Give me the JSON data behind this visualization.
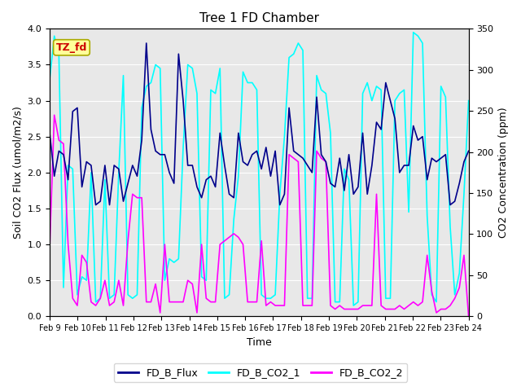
{
  "title": "Tree 1 FD Chamber",
  "xlabel": "Time",
  "ylabel_left": "Soil CO2 Flux (umol/m2/s)",
  "ylabel_right": "CO2 Concentration (ppm)",
  "ylim_left": [
    0.0,
    4.0
  ],
  "ylim_right": [
    0,
    350
  ],
  "annotation_text": "TZ_fd",
  "annotation_color": "#cc0000",
  "annotation_bg": "#ffff99",
  "annotation_edge": "#aaaa00",
  "line_colors": {
    "FD_B_Flux": "#00008B",
    "FD_B_CO2_1": "#00FFFF",
    "FD_B_CO2_2": "#FF00FF"
  },
  "line_widths": {
    "FD_B_Flux": 1.2,
    "FD_B_CO2_1": 1.2,
    "FD_B_CO2_2": 1.2
  },
  "background_color": "#e8e8e8",
  "x_tick_labels": [
    "Feb 9",
    "Feb 10",
    "Feb 11",
    "Feb 12",
    "Feb 13",
    "Feb 14",
    "Feb 15",
    "Feb 16",
    "Feb 17",
    "Feb 18",
    "Feb 19",
    "Feb 20",
    "Feb 21",
    "Feb 22",
    "Feb 23",
    "Feb 24"
  ],
  "flux_data": [
    2.55,
    1.95,
    2.3,
    2.25,
    1.9,
    2.85,
    2.9,
    1.8,
    2.15,
    2.1,
    1.55,
    1.6,
    2.1,
    1.55,
    2.1,
    2.05,
    1.6,
    1.85,
    2.1,
    1.95,
    2.45,
    3.8,
    2.6,
    2.3,
    2.25,
    2.25,
    2.0,
    1.85,
    3.65,
    3.0,
    2.1,
    2.1,
    1.8,
    1.65,
    1.9,
    1.95,
    1.8,
    2.55,
    2.1,
    1.7,
    1.65,
    2.55,
    2.15,
    2.1,
    2.25,
    2.3,
    2.05,
    2.35,
    1.95,
    2.3,
    1.55,
    1.7,
    2.9,
    2.3,
    2.25,
    2.2,
    2.1,
    2.0,
    3.05,
    2.25,
    2.15,
    1.85,
    1.8,
    2.2,
    1.75,
    2.25,
    1.7,
    1.8,
    2.55,
    1.7,
    2.1,
    2.7,
    2.6,
    3.25,
    3.0,
    2.75,
    2.0,
    2.1,
    2.1,
    2.65,
    2.45,
    2.5,
    1.9,
    2.2,
    2.15,
    2.2,
    2.25,
    1.55,
    1.6,
    1.85,
    2.15,
    2.3
  ],
  "co2_1_data": [
    3.3,
    3.9,
    3.65,
    0.4,
    2.1,
    2.05,
    0.3,
    0.55,
    0.5,
    2.0,
    0.2,
    0.25,
    1.9,
    0.25,
    0.3,
    2.0,
    3.35,
    0.3,
    0.25,
    0.3,
    2.9,
    3.2,
    3.25,
    3.5,
    3.45,
    0.5,
    0.8,
    0.75,
    0.8,
    2.35,
    3.5,
    3.45,
    3.1,
    0.55,
    0.5,
    3.15,
    3.1,
    3.45,
    0.25,
    0.3,
    1.35,
    1.95,
    3.4,
    3.25,
    3.25,
    3.15,
    0.3,
    0.25,
    0.25,
    0.3,
    1.7,
    2.5,
    3.6,
    3.65,
    3.8,
    3.7,
    0.25,
    0.25,
    3.35,
    3.15,
    3.1,
    2.55,
    0.2,
    0.2,
    2.05,
    1.9,
    0.15,
    0.2,
    3.1,
    3.25,
    3.0,
    3.2,
    3.15,
    0.25,
    0.25,
    3.0,
    3.1,
    3.15,
    1.45,
    3.95,
    3.9,
    3.8,
    1.4,
    0.3,
    0.2,
    3.2,
    3.05,
    1.25,
    0.3,
    0.6,
    1.7,
    3.0
  ],
  "co2_2_data": [
    0.95,
    2.8,
    2.45,
    2.4,
    1.0,
    0.25,
    0.15,
    0.85,
    0.75,
    0.2,
    0.15,
    0.25,
    0.5,
    0.15,
    0.2,
    0.5,
    0.15,
    1.05,
    1.7,
    1.65,
    1.65,
    0.2,
    0.2,
    0.45,
    0.05,
    1.0,
    0.2,
    0.2,
    0.2,
    0.2,
    0.5,
    0.45,
    0.05,
    1.0,
    0.25,
    0.2,
    0.2,
    1.0,
    1.05,
    1.1,
    1.15,
    1.1,
    1.0,
    0.2,
    0.2,
    0.2,
    1.05,
    0.15,
    0.2,
    0.15,
    0.15,
    0.15,
    2.25,
    2.2,
    2.15,
    0.15,
    0.15,
    0.15,
    2.3,
    2.2,
    2.15,
    0.15,
    0.1,
    0.15,
    0.1,
    0.1,
    0.1,
    0.1,
    0.15,
    0.15,
    0.15,
    1.7,
    0.15,
    0.1,
    0.1,
    0.1,
    0.15,
    0.1,
    0.15,
    0.2,
    0.15,
    0.2,
    0.85,
    0.35,
    0.05,
    0.1,
    0.1,
    0.15,
    0.25,
    0.4,
    0.85,
    0.0
  ]
}
